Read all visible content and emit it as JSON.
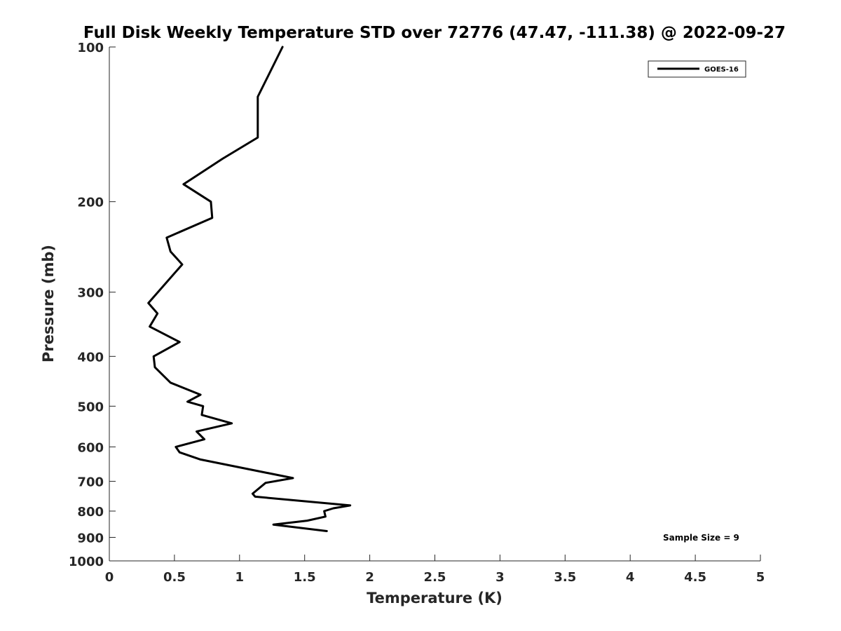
{
  "chart_data": {
    "type": "line",
    "title": "Full Disk Weekly Temperature STD over 72776 (47.47, -111.38) @ 2022-09-27",
    "xlabel": "Temperature (K)",
    "ylabel": "Pressure (mb)",
    "xlim": [
      0,
      5
    ],
    "ylim": [
      1000,
      100
    ],
    "yscale": "log",
    "y_direction": "reversed",
    "grid": false,
    "legend_position": "top-right",
    "x_ticks": [
      "0",
      "0.5",
      "1",
      "1.5",
      "2",
      "2.5",
      "3",
      "3.5",
      "4",
      "4.5",
      "5"
    ],
    "y_ticks": [
      "100",
      "200",
      "300",
      "400",
      "500",
      "600",
      "700",
      "800",
      "900",
      "1000"
    ],
    "annotation": "Sample Size = 9",
    "series": [
      {
        "name": "GOES-16",
        "color": "#000000",
        "points": [
          {
            "x": 1.33,
            "y": 100
          },
          {
            "x": 1.14,
            "y": 125
          },
          {
            "x": 1.14,
            "y": 150
          },
          {
            "x": 0.87,
            "y": 165
          },
          {
            "x": 0.57,
            "y": 185
          },
          {
            "x": 0.78,
            "y": 200
          },
          {
            "x": 0.79,
            "y": 215
          },
          {
            "x": 0.44,
            "y": 235
          },
          {
            "x": 0.47,
            "y": 250
          },
          {
            "x": 0.56,
            "y": 265
          },
          {
            "x": 0.3,
            "y": 315
          },
          {
            "x": 0.37,
            "y": 330
          },
          {
            "x": 0.31,
            "y": 350
          },
          {
            "x": 0.54,
            "y": 375
          },
          {
            "x": 0.34,
            "y": 400
          },
          {
            "x": 0.35,
            "y": 420
          },
          {
            "x": 0.47,
            "y": 450
          },
          {
            "x": 0.7,
            "y": 475
          },
          {
            "x": 0.6,
            "y": 490
          },
          {
            "x": 0.72,
            "y": 500
          },
          {
            "x": 0.71,
            "y": 520
          },
          {
            "x": 0.94,
            "y": 540
          },
          {
            "x": 0.67,
            "y": 560
          },
          {
            "x": 0.73,
            "y": 580
          },
          {
            "x": 0.51,
            "y": 600
          },
          {
            "x": 0.54,
            "y": 615
          },
          {
            "x": 0.7,
            "y": 635
          },
          {
            "x": 1.41,
            "y": 690
          },
          {
            "x": 1.2,
            "y": 705
          },
          {
            "x": 1.1,
            "y": 740
          },
          {
            "x": 1.12,
            "y": 750
          },
          {
            "x": 1.85,
            "y": 780
          },
          {
            "x": 1.72,
            "y": 790
          },
          {
            "x": 1.65,
            "y": 800
          },
          {
            "x": 1.66,
            "y": 820
          },
          {
            "x": 1.52,
            "y": 835
          },
          {
            "x": 1.26,
            "y": 850
          },
          {
            "x": 1.67,
            "y": 875
          }
        ]
      }
    ]
  }
}
